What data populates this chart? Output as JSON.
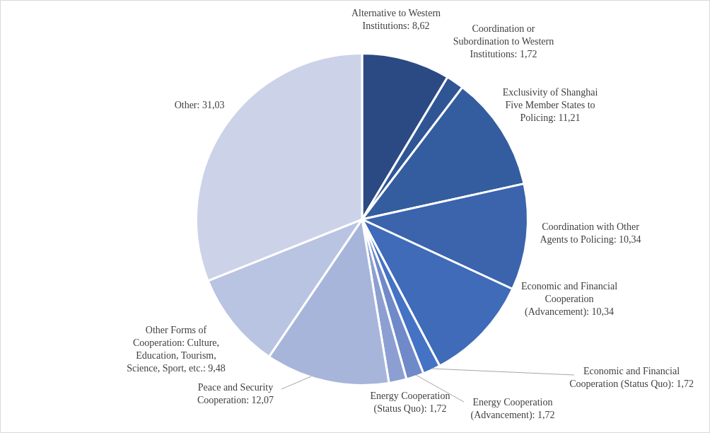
{
  "chart_data": {
    "type": "pie",
    "categories": [
      "Alternative to Western Institutions",
      "Coordination or Subordination to Western Institutions",
      "Exclusivity of Shanghai Five Member States to Policing",
      "Coordination with Other Agents to Policing",
      "Economic and Financial Cooperation (Advancement)",
      "Economic and Financial Cooperation (Status Quo)",
      "Energy Cooperation (Advancement)",
      "Energy Cooperation (Status Quo)",
      "Peace and Security Cooperation",
      "Other Forms of Cooperation: Culture, Education, Tourism, Science, Sport, etc.",
      "Other"
    ],
    "values": [
      8.62,
      1.72,
      11.21,
      10.34,
      10.34,
      1.72,
      1.72,
      1.72,
      12.07,
      9.48,
      31.03
    ],
    "value_labels": [
      "8,62",
      "1,72",
      "11,21",
      "10,34",
      "10,34",
      "1,72",
      "1,72",
      "1,72",
      "12,07",
      "9,48",
      "31,03"
    ],
    "colors": [
      "#2b4a84",
      "#2f5595",
      "#345da0",
      "#3b64ad",
      "#3f6bb8",
      "#4472c4",
      "#6f89c9",
      "#8d9fd2",
      "#a7b5da",
      "#b9c3e2",
      "#ccd2e8"
    ]
  }
}
